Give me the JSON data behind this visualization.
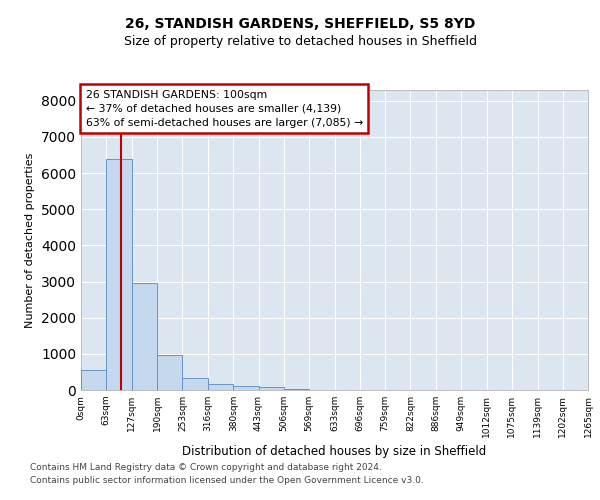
{
  "title_line1": "26, STANDISH GARDENS, SHEFFIELD, S5 8YD",
  "title_line2": "Size of property relative to detached houses in Sheffield",
  "xlabel": "Distribution of detached houses by size in Sheffield",
  "ylabel": "Number of detached properties",
  "bin_edges": [
    0,
    63,
    127,
    190,
    253,
    316,
    380,
    443,
    506,
    569,
    633,
    696,
    759,
    822,
    886,
    949,
    1012,
    1075,
    1139,
    1202,
    1265
  ],
  "bin_labels": [
    "0sqm",
    "63sqm",
    "127sqm",
    "190sqm",
    "253sqm",
    "316sqm",
    "380sqm",
    "443sqm",
    "506sqm",
    "569sqm",
    "633sqm",
    "696sqm",
    "759sqm",
    "822sqm",
    "886sqm",
    "949sqm",
    "1012sqm",
    "1075sqm",
    "1139sqm",
    "1202sqm",
    "1265sqm"
  ],
  "bar_heights": [
    550,
    6400,
    2950,
    980,
    330,
    160,
    100,
    75,
    30,
    10,
    5,
    3,
    2,
    1,
    1,
    0,
    0,
    0,
    0,
    0
  ],
  "bar_color": "#c5d8ee",
  "bar_edgecolor": "#6494c8",
  "background_color": "#dce6f1",
  "grid_color": "#ffffff",
  "property_size": 100,
  "vline_color": "#c00000",
  "annotation_line1": "26 STANDISH GARDENS: 100sqm",
  "annotation_line2": "← 37% of detached houses are smaller (4,139)",
  "annotation_line3": "63% of semi-detached houses are larger (7,085) →",
  "annotation_box_edgecolor": "#c00000",
  "ylim": [
    0,
    8300
  ],
  "yticks": [
    0,
    1000,
    2000,
    3000,
    4000,
    5000,
    6000,
    7000,
    8000
  ],
  "footnote_line1": "Contains HM Land Registry data © Crown copyright and database right 2024.",
  "footnote_line2": "Contains public sector information licensed under the Open Government Licence v3.0."
}
